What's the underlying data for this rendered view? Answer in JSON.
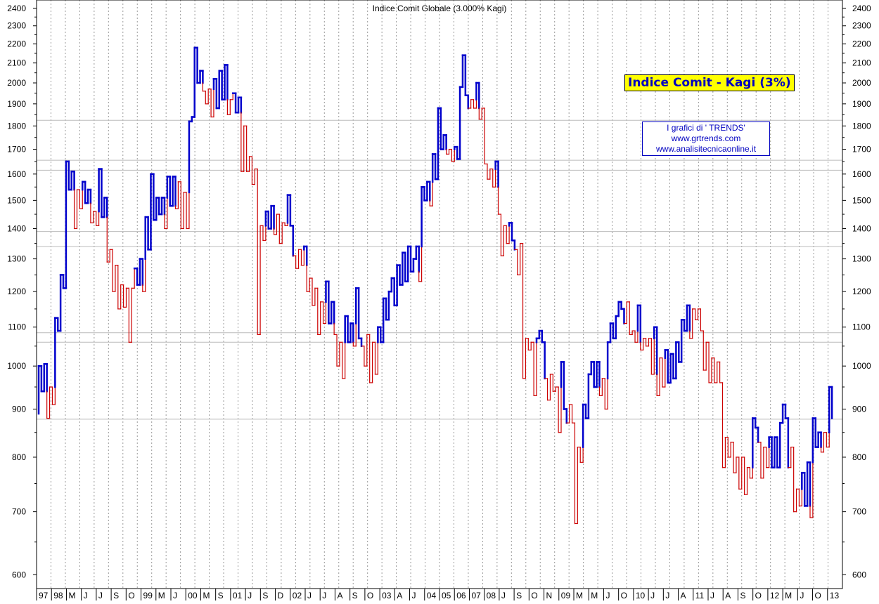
{
  "chart_data": {
    "type": "kagi",
    "title": "Indice Comit Globale (3.000% Kagi)",
    "legend_badge": "Indice Comit - Kagi (3%)",
    "credit_lines": [
      "I grafici di ' TRENDS'",
      "www.grtrends.com",
      "www.analisitecnicaonline.it"
    ],
    "y_scale": "log",
    "ylim": [
      580,
      2450
    ],
    "y_ticks": [
      600,
      700,
      800,
      900,
      1000,
      1100,
      1200,
      1300,
      1400,
      1500,
      1600,
      1700,
      1800,
      1900,
      2000,
      2100,
      2200,
      2300,
      2400
    ],
    "x_labels": [
      "97",
      "98",
      "M",
      "J",
      "J",
      "S",
      "O",
      "99",
      "M",
      "J",
      "00",
      "M",
      "S",
      "01",
      "J",
      "S",
      "D",
      "02",
      "J",
      "J",
      "A",
      "S",
      "O",
      "03",
      "A",
      "J",
      "04",
      "05",
      "06",
      "07",
      "08",
      "J",
      "S",
      "O",
      "N",
      "09",
      "M",
      "M",
      "J",
      "O",
      "10",
      "J",
      "J",
      "A",
      "11",
      "J",
      "A",
      "S",
      "O",
      "12",
      "M",
      "J",
      "O",
      "13"
    ],
    "horizontal_lines": [
      1825,
      1655,
      1615,
      1390,
      1340,
      1085,
      1060,
      878
    ],
    "colors": {
      "up": "#0000cc",
      "down": "#cc0000",
      "grid": "#999999",
      "hline": "#bbbbbb",
      "badge_bg": "#ffff00",
      "text_blue": "#0000c0"
    },
    "kagi_turns": [
      890,
      1000,
      940,
      1005,
      880,
      950,
      910,
      1125,
      1090,
      1250,
      1210,
      1650,
      1540,
      1610,
      1400,
      1540,
      1470,
      1570,
      1490,
      1540,
      1420,
      1460,
      1410,
      1620,
      1440,
      1510,
      1290,
      1330,
      1200,
      1280,
      1150,
      1220,
      1155,
      1210,
      1060,
      1210,
      1270,
      1220,
      1300,
      1200,
      1440,
      1330,
      1600,
      1430,
      1510,
      1450,
      1510,
      1400,
      1590,
      1480,
      1590,
      1470,
      1570,
      1400,
      1530,
      1400,
      1820,
      1840,
      2180,
      2000,
      2060,
      1960,
      1900,
      1970,
      1840,
      2020,
      1880,
      2060,
      1920,
      2090,
      1850,
      1920,
      1950,
      1860,
      1930,
      1610,
      1800,
      1610,
      1670,
      1560,
      1620,
      1080,
      1410,
      1360,
      1460,
      1400,
      1480,
      1380,
      1450,
      1350,
      1420,
      1410,
      1520,
      1410,
      1310,
      1270,
      1330,
      1280,
      1340,
      1200,
      1240,
      1160,
      1210,
      1080,
      1170,
      1110,
      1230,
      1110,
      1170,
      1080,
      1000,
      1060,
      970,
      1130,
      1060,
      1110,
      1050,
      1210,
      1070,
      1050,
      1000,
      1080,
      960,
      1060,
      980,
      1100,
      1060,
      1180,
      1120,
      1200,
      1240,
      1160,
      1280,
      1220,
      1320,
      1230,
      1340,
      1260,
      1300,
      1340,
      1230,
      1550,
      1500,
      1570,
      1480,
      1680,
      1580,
      1880,
      1700,
      1760,
      1680,
      1700,
      1650,
      1710,
      1660,
      1980,
      2140,
      1940,
      1880,
      1920,
      1880,
      2000,
      1830,
      1880,
      1640,
      1580,
      1620,
      1550,
      1650,
      1450,
      1310,
      1410,
      1350,
      1420,
      1360,
      1330,
      1250,
      1350,
      970,
      1070,
      1040,
      1060,
      930,
      1070,
      1090,
      1060,
      970,
      920,
      980,
      940,
      950,
      850,
      1010,
      900,
      870,
      910,
      870,
      680,
      820,
      790,
      910,
      880,
      980,
      1010,
      950,
      1010,
      930,
      970,
      900,
      1060,
      1110,
      1070,
      1130,
      1170,
      1150,
      1110,
      1170,
      1080,
      1090,
      1060,
      1160,
      1040,
      1070,
      1050,
      1070,
      980,
      1100,
      930,
      1020,
      950,
      1040,
      960,
      1030,
      970,
      1060,
      1010,
      1120,
      1090,
      1160,
      1070,
      1150,
      1120,
      1150,
      1090,
      990,
      1060,
      960,
      1020,
      960,
      1010,
      960,
      780,
      840,
      800,
      830,
      770,
      800,
      740,
      800,
      730,
      780,
      760,
      880,
      860,
      830,
      760,
      820,
      780,
      840,
      780,
      840,
      780,
      870,
      910,
      880,
      780,
      820,
      700,
      740,
      710,
      770,
      710,
      790,
      690,
      880,
      820,
      850,
      810,
      850,
      820,
      950,
      880
    ]
  }
}
